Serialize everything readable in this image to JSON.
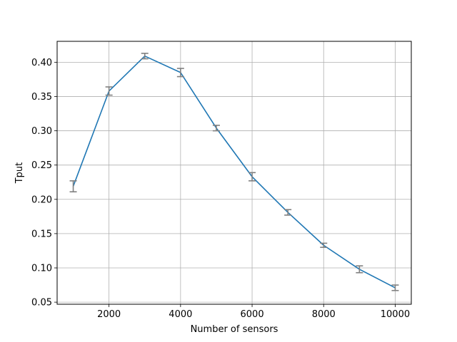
{
  "chart_data": {
    "type": "line",
    "title": "",
    "xlabel": "Number of sensors",
    "ylabel": "Tput",
    "x": [
      1000,
      2000,
      3000,
      4000,
      5000,
      6000,
      7000,
      8000,
      9000,
      10000
    ],
    "series": [
      {
        "values": [
          0.219,
          0.358,
          0.409,
          0.385,
          0.304,
          0.233,
          0.181,
          0.133,
          0.098,
          0.071
        ],
        "errors": [
          0.008,
          0.006,
          0.004,
          0.006,
          0.004,
          0.006,
          0.004,
          0.003,
          0.005,
          0.004
        ],
        "color": "#1f77b4",
        "error_color": "#808080"
      }
    ],
    "xlim": [
      550,
      10450
    ],
    "ylim": [
      0.047,
      0.4305
    ],
    "xticks": [
      2000,
      4000,
      6000,
      8000,
      10000
    ],
    "xtick_labels": [
      "2000",
      "4000",
      "6000",
      "8000",
      "10000"
    ],
    "yticks": [
      0.05,
      0.1,
      0.15,
      0.2,
      0.25,
      0.3,
      0.35,
      0.4
    ],
    "ytick_labels": [
      "0.05",
      "0.10",
      "0.15",
      "0.20",
      "0.25",
      "0.30",
      "0.35",
      "0.40"
    ],
    "grid": true,
    "legend": "none"
  }
}
